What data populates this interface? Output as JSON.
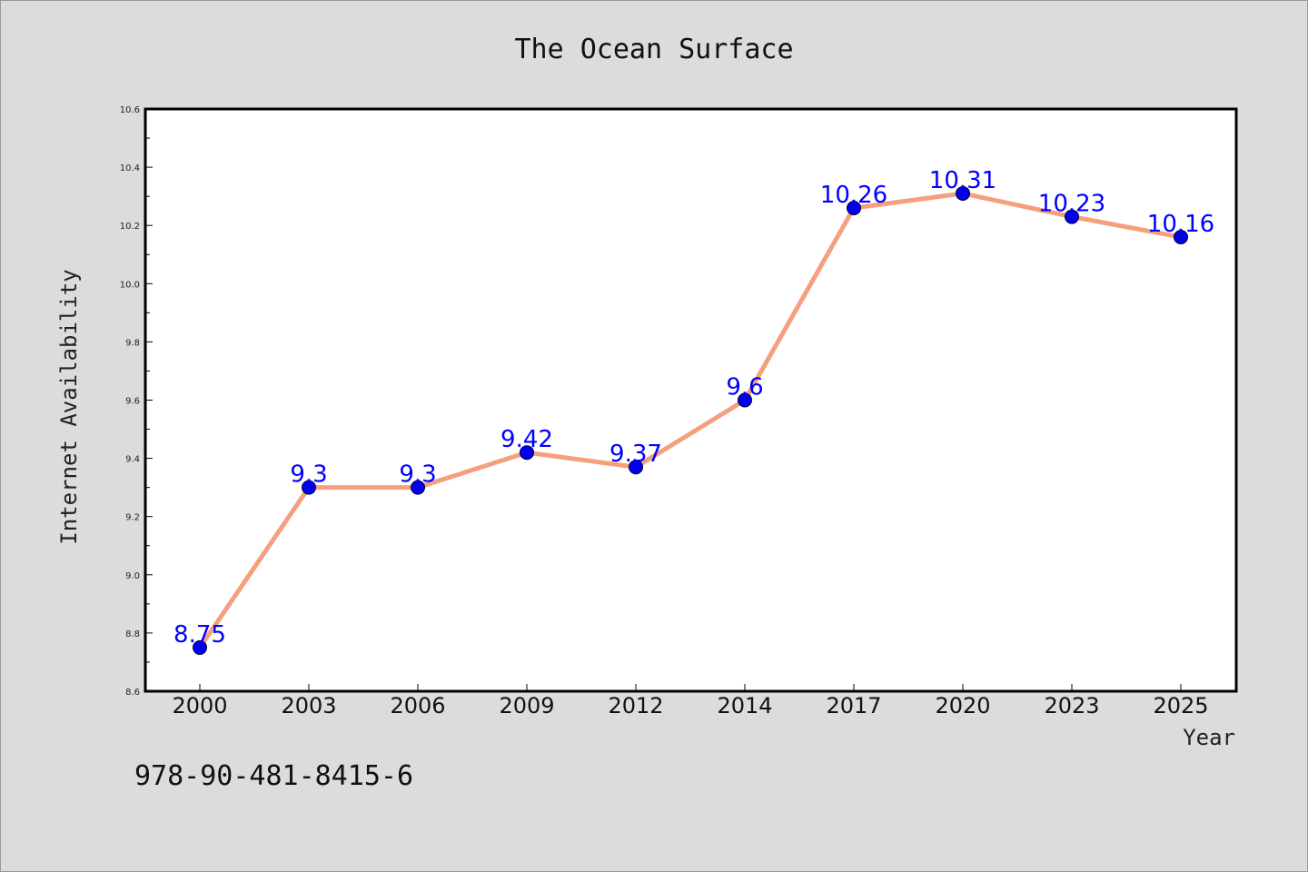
{
  "isbn": "978-90-481-8415-6",
  "colors": {
    "background": "#dcdcdc",
    "plot_background": "#ffffff",
    "line": "#f4a07e",
    "marker": "#0000ee",
    "data_label": "#0000ff"
  },
  "chart_data": {
    "type": "line",
    "title": "The Ocean Surface",
    "xlabel": "Year",
    "ylabel": "Internet Availability",
    "categories": [
      "2000",
      "2003",
      "2006",
      "2009",
      "2012",
      "2014",
      "2017",
      "2020",
      "2023",
      "2025"
    ],
    "series": [
      {
        "values": [
          8.75,
          9.3,
          9.3,
          9.42,
          9.37,
          9.6,
          10.26,
          10.31,
          10.23,
          10.16
        ],
        "data_labels": [
          "8.75",
          "9.3",
          "9.3",
          "9.42",
          "9.37",
          "9.6",
          "10.26",
          "10.31",
          "10.23",
          "10.16"
        ]
      }
    ],
    "ylim": [
      8.6,
      10.6
    ],
    "yticks": [
      "8.6",
      "8.8",
      "9.0",
      "9.2",
      "9.4",
      "9.6",
      "9.8",
      "10.0",
      "10.2",
      "10.4",
      "10.6"
    ],
    "grid": false,
    "legend": "none"
  }
}
